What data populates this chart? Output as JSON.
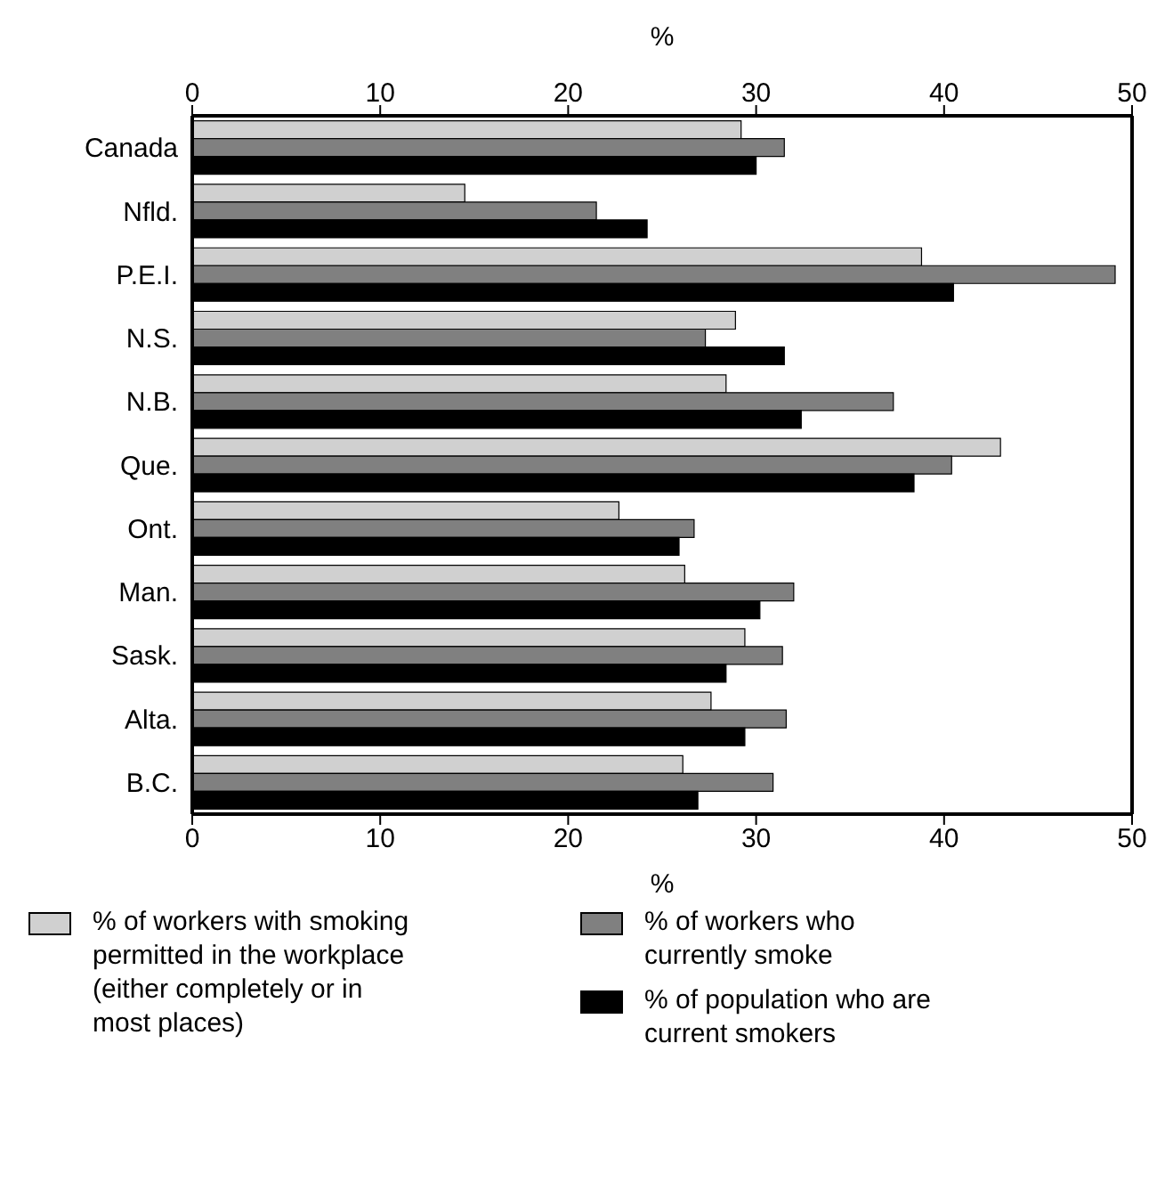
{
  "chart_data": {
    "type": "bar",
    "orientation": "horizontal",
    "categories": [
      "Canada",
      "Nfld.",
      "P.E.I.",
      "N.S.",
      "N.B.",
      "Que.",
      "Ont.",
      "Man.",
      "Sask.",
      "Alta.",
      "B.C."
    ],
    "series": [
      {
        "name": "% of workers with smoking permitted in the workplace (either completely or in most places)",
        "color": "#d0d0d0",
        "values": [
          29.2,
          14.5,
          38.8,
          28.9,
          28.4,
          43.0,
          22.7,
          26.2,
          29.4,
          27.6,
          26.1
        ]
      },
      {
        "name": "% of workers who currently smoke",
        "color": "#808080",
        "values": [
          31.5,
          21.5,
          49.1,
          27.3,
          37.3,
          40.4,
          26.7,
          32.0,
          31.4,
          31.6,
          30.9
        ]
      },
      {
        "name": "% of population who are current smokers",
        "color": "#000000",
        "values": [
          30.0,
          24.2,
          40.5,
          31.5,
          32.4,
          38.4,
          25.9,
          30.2,
          28.4,
          29.4,
          26.9
        ]
      }
    ],
    "xlabel": "%",
    "xlim": [
      0,
      50
    ],
    "xticks": [
      0,
      10,
      20,
      30,
      40,
      50
    ],
    "x2label": "%",
    "x2lim": [
      0,
      50
    ],
    "x2ticks": [
      0,
      10,
      20,
      30,
      40,
      50
    ],
    "legend": "bottom"
  }
}
